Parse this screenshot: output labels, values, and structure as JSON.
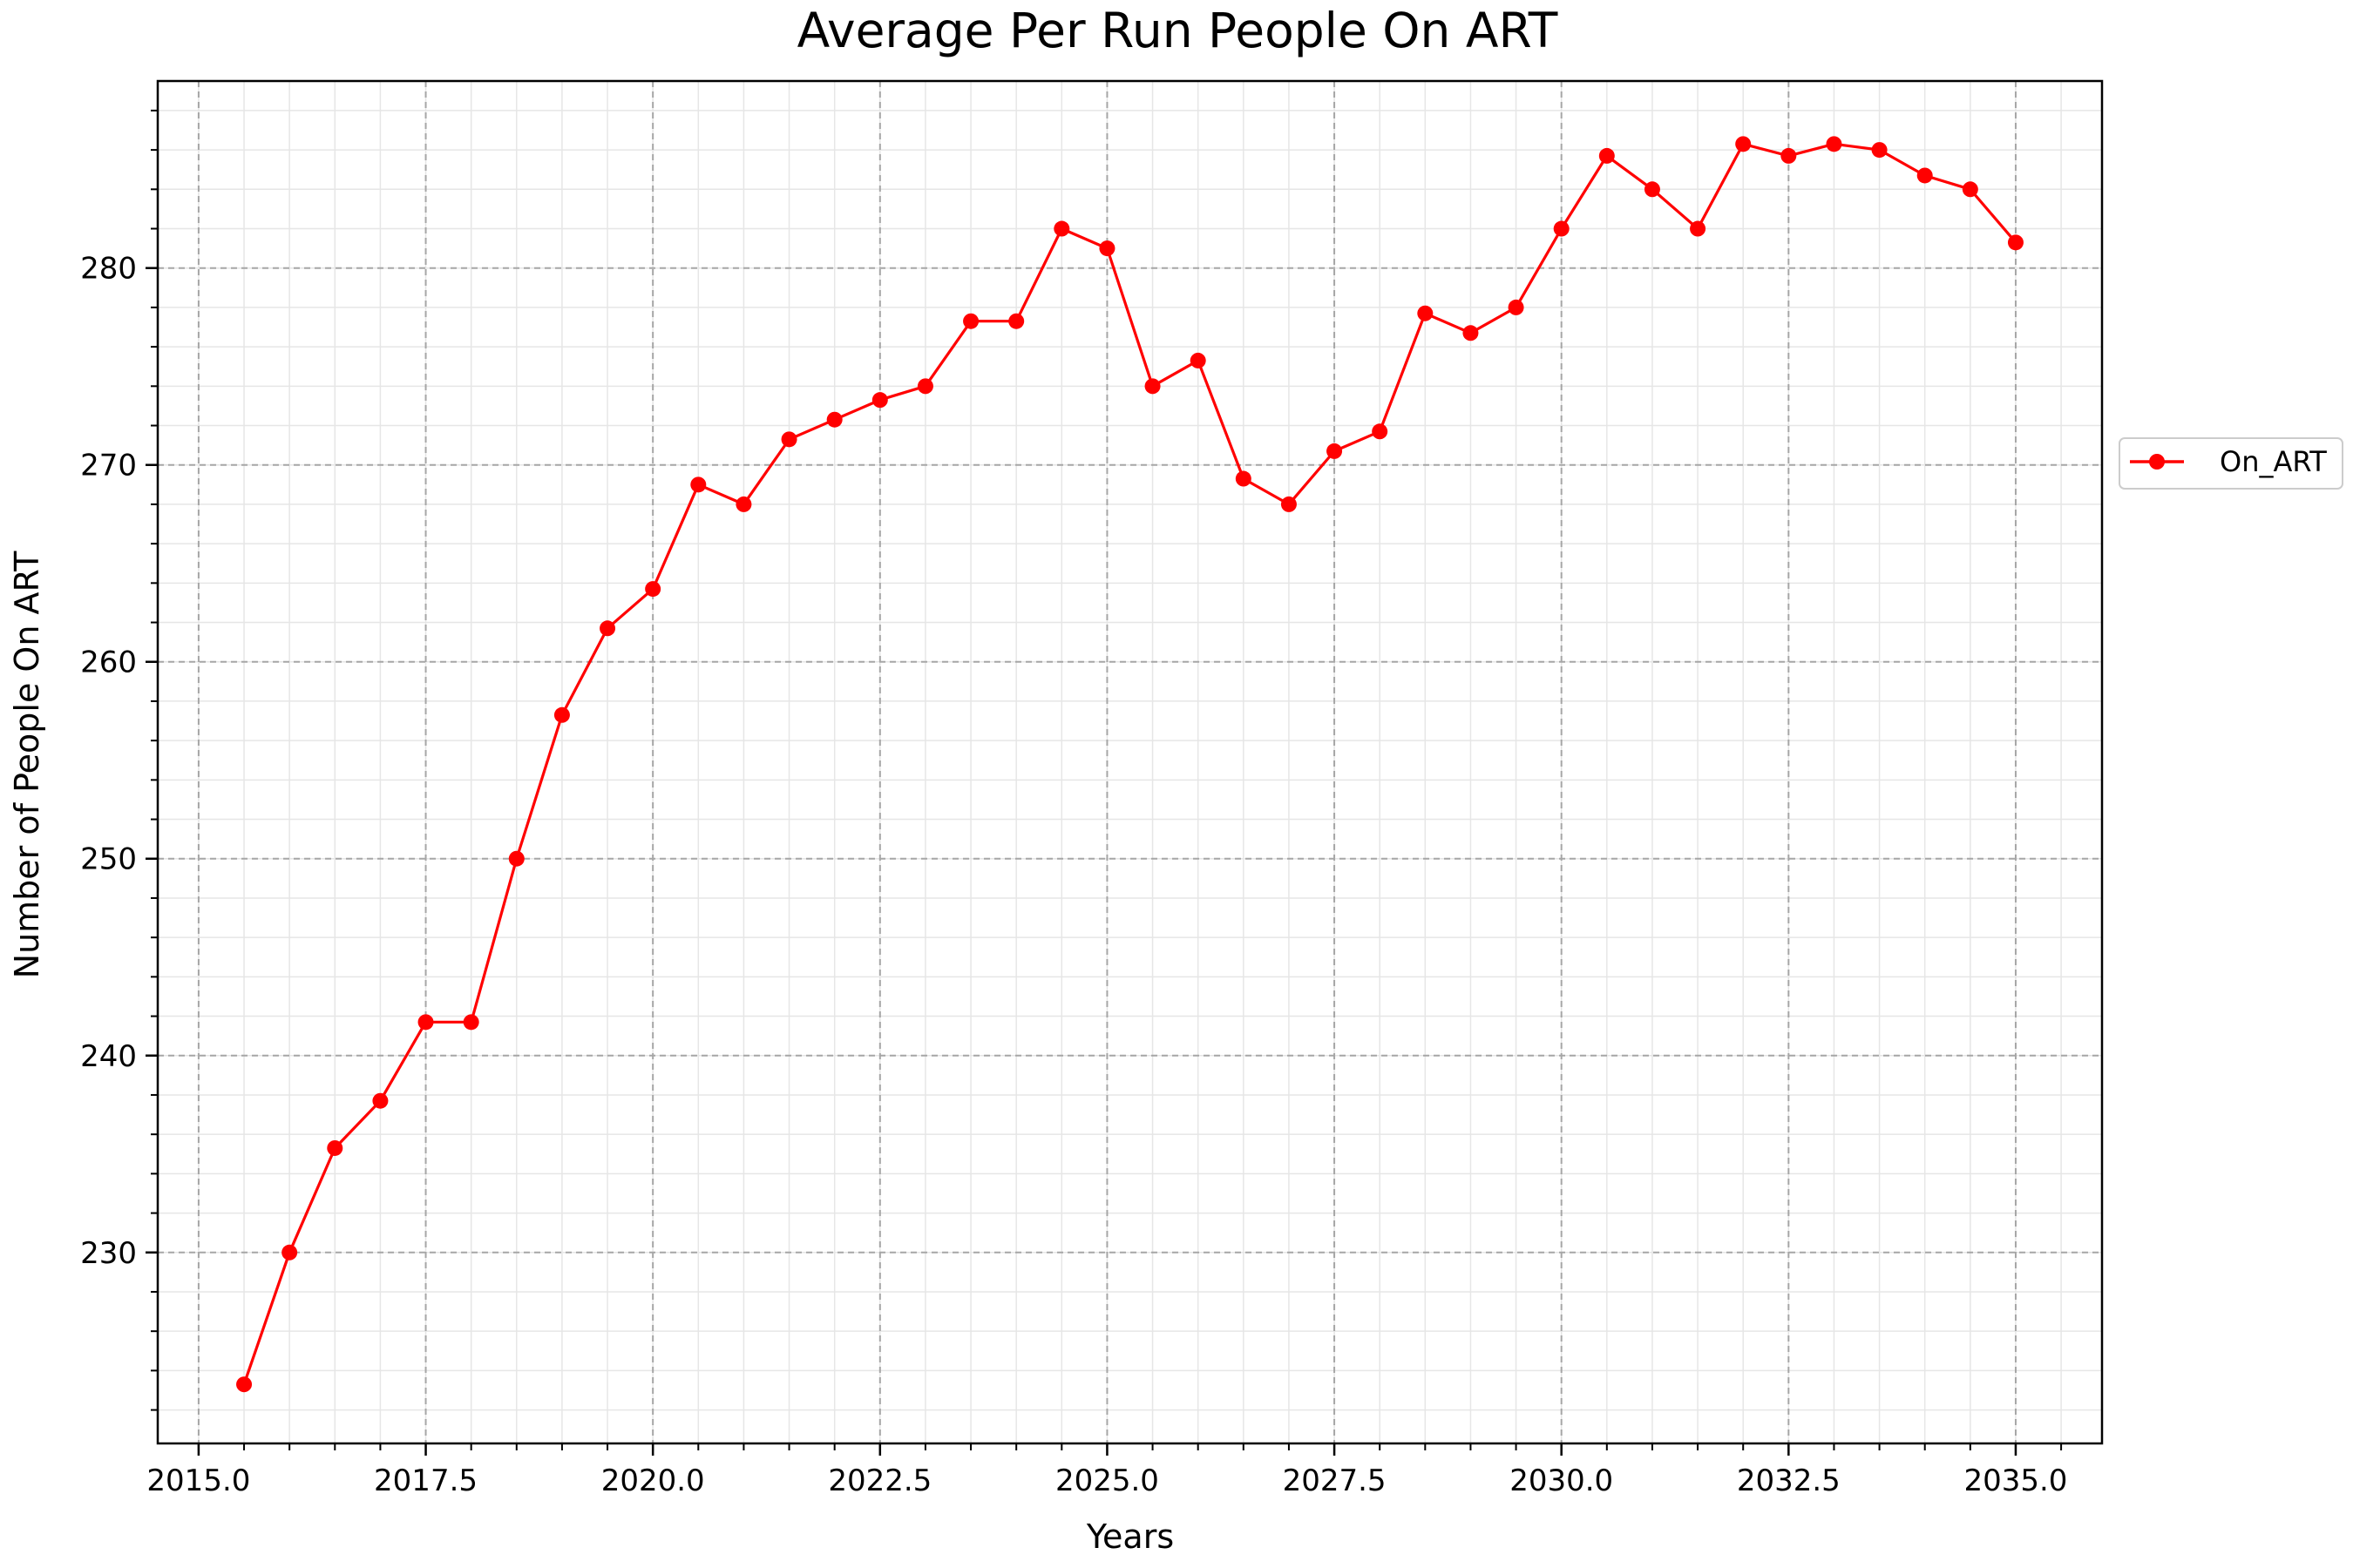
{
  "chart_data": {
    "type": "line",
    "title": "Average Per Run People On ART",
    "xlabel": "Years",
    "ylabel": "Number of People On ART",
    "xlim": [
      2014.55,
      2035.95
    ],
    "ylim": [
      220.3,
      289.5
    ],
    "x_ticks": [
      2015.0,
      2017.5,
      2020.0,
      2022.5,
      2025.0,
      2027.5,
      2030.0,
      2032.5,
      2035.0
    ],
    "x_tick_labels": [
      "2015.0",
      "2017.5",
      "2020.0",
      "2022.5",
      "2025.0",
      "2027.5",
      "2030.0",
      "2032.5",
      "2035.0"
    ],
    "y_ticks": [
      230,
      240,
      250,
      260,
      270,
      280
    ],
    "y_tick_labels": [
      "230",
      "240",
      "250",
      "260",
      "270",
      "280"
    ],
    "grid": true,
    "minor_grid": true,
    "legend_position": "right-outside",
    "series": [
      {
        "name": "On_ART",
        "color": "#ff0000",
        "marker": "circle",
        "x": [
          2015.5,
          2016.0,
          2016.5,
          2017.0,
          2017.5,
          2018.0,
          2018.5,
          2019.0,
          2019.5,
          2020.0,
          2020.5,
          2021.0,
          2021.5,
          2022.0,
          2022.5,
          2023.0,
          2023.5,
          2024.0,
          2024.5,
          2025.0,
          2025.5,
          2026.0,
          2026.5,
          2027.0,
          2027.5,
          2028.0,
          2028.5,
          2029.0,
          2029.5,
          2030.0,
          2030.5,
          2031.0,
          2031.5,
          2032.0,
          2032.5,
          2033.0,
          2033.5,
          2034.0,
          2034.5,
          2035.0
        ],
        "y": [
          223.3,
          230.0,
          235.3,
          237.7,
          241.7,
          241.7,
          250.0,
          257.3,
          261.7,
          263.7,
          269.0,
          268.0,
          271.3,
          272.3,
          273.3,
          274.0,
          277.3,
          277.3,
          282.0,
          281.0,
          274.0,
          275.3,
          269.3,
          268.0,
          270.7,
          271.7,
          277.7,
          276.7,
          278.0,
          282.0,
          285.7,
          284.0,
          282.0,
          286.3,
          285.7,
          286.3,
          286.0,
          284.7,
          284.0,
          281.3
        ]
      }
    ]
  }
}
